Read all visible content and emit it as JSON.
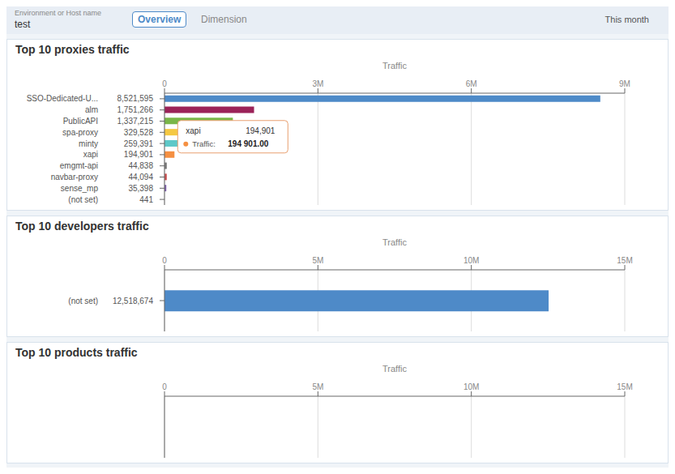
{
  "chart_data": [
    {
      "type": "bar",
      "orientation": "horizontal",
      "title": "Top 10 proxies traffic",
      "xlabel": "Traffic",
      "categories": [
        "SSO-Dedicated-U...",
        "alm",
        "PublicAPI",
        "spa-proxy",
        "minty",
        "xapi",
        "emgmt-api",
        "navbar-proxy",
        "sense_mp",
        "(not set)"
      ],
      "values": [
        8521595,
        1751266,
        1337215,
        329528,
        259391,
        194901,
        44838,
        44094,
        35398,
        441
      ],
      "value_labels": [
        "8,521,595",
        "1,751,266",
        "1,337,215",
        "329,528",
        "259,391",
        "194,901",
        "44,838",
        "44,094",
        "35,398",
        "441"
      ],
      "colors": [
        "#4e8ac8",
        "#9b2258",
        "#7ab648",
        "#f5c842",
        "#5ec8c8",
        "#f59042",
        "#7b7b7b",
        "#c84e4e",
        "#7b5ea7",
        "#c8c8c8"
      ],
      "xlim": [
        0,
        9000000
      ],
      "xticks": [
        0,
        {
          "value": 3000000,
          "label": "3M"
        },
        {
          "value": 6000000,
          "label": "6M"
        },
        {
          "value": 9000000,
          "label": "9M"
        }
      ],
      "grid": true,
      "data_labels": true,
      "annotations": [
        {
          "text": "Environment or Host name"
        },
        {
          "text": "test"
        },
        {
          "text": "Overview"
        },
        {
          "text": "Dimension"
        },
        {
          "text": "This month"
        },
        {
          "category": "xapi",
          "text": "xapi"
        },
        {
          "category": "xapi",
          "text": "194,901"
        },
        {
          "category": "xapi",
          "text": "Traffic:"
        },
        {
          "category": "xapi",
          "text": "194 901.00"
        }
      ]
    },
    {
      "type": "bar",
      "orientation": "horizontal",
      "title": "Top 10 developers traffic",
      "xlabel": "Traffic",
      "categories": [
        "(not set)"
      ],
      "values": [
        12518674
      ],
      "value_labels": [
        "12,518,674"
      ],
      "colors": [
        "#4e8ac8"
      ],
      "xlim": [
        0,
        15000000
      ],
      "xticks": [
        0,
        {
          "value": 5000000,
          "label": "5M"
        },
        {
          "value": 10000000,
          "label": "10M"
        },
        {
          "value": 15000000,
          "label": "15M"
        }
      ],
      "grid": true,
      "data_labels": true
    },
    {
      "type": "bar",
      "orientation": "horizontal",
      "title": "Top 10 products traffic",
      "xlabel": "Traffic",
      "categories": [],
      "values": [],
      "value_labels": [],
      "colors": [],
      "xlim": [
        0,
        15000000
      ],
      "xticks": [
        0,
        {
          "value": 5000000,
          "label": "5M"
        },
        {
          "value": 10000000,
          "label": "10M"
        },
        {
          "value": 15000000,
          "label": "15M"
        }
      ],
      "grid": true,
      "data_labels": true
    }
  ]
}
